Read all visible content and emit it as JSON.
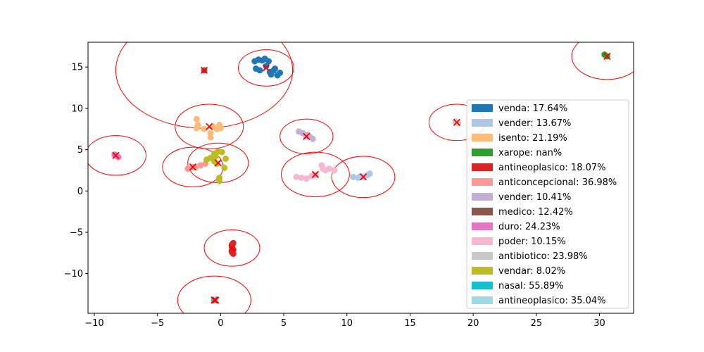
{
  "chart_data": {
    "type": "scatter",
    "title": "",
    "xlabel": "",
    "ylabel": "",
    "xlim": [
      -10.5,
      32.7
    ],
    "ylim": [
      -14.8,
      18.0
    ],
    "xticks": [
      -10,
      -5,
      0,
      5,
      10,
      15,
      20,
      25,
      30
    ],
    "yticks": [
      -10,
      -5,
      0,
      5,
      10,
      15
    ],
    "grid": false,
    "legend_position": "right",
    "center_marker_color": "#ff0000",
    "circle_color": "#ff0000",
    "series": [
      {
        "name": "venda: 17.64%",
        "color": "#1f77b4",
        "points": [
          [
            2.7,
            15.7
          ],
          [
            3.0,
            15.9
          ],
          [
            3.3,
            15.8
          ],
          [
            3.5,
            16.0
          ],
          [
            3.8,
            15.7
          ],
          [
            2.8,
            14.8
          ],
          [
            3.1,
            14.6
          ],
          [
            3.9,
            14.4
          ],
          [
            4.0,
            14.1
          ],
          [
            4.3,
            14.8
          ],
          [
            4.5,
            14.0
          ],
          [
            4.7,
            14.3
          ],
          [
            3.6,
            15.1
          ],
          [
            4.2,
            14.6
          ]
        ],
        "center": [
          3.6,
          14.9
        ],
        "radius": 2.2
      },
      {
        "name": "vender: 13.67%",
        "color": "#aec7e8",
        "points": [
          [
            10.5,
            1.7
          ],
          [
            10.9,
            1.6
          ],
          [
            11.1,
            1.8
          ],
          [
            11.6,
            1.9
          ],
          [
            11.8,
            2.1
          ],
          [
            11.3,
            1.7
          ]
        ],
        "center": [
          11.3,
          1.7
        ],
        "radius": 2.5
      },
      {
        "name": "isento: 21.19%",
        "color": "#ffbb78",
        "points": [
          [
            -1.9,
            8.7
          ],
          [
            -1.8,
            8.0
          ],
          [
            -1.9,
            7.6
          ],
          [
            -1.3,
            7.5
          ],
          [
            -0.8,
            7.0
          ],
          [
            -0.8,
            6.5
          ],
          [
            -0.1,
            8.0
          ],
          [
            0.0,
            7.6
          ],
          [
            -0.3,
            7.5
          ],
          [
            -0.6,
            7.8
          ]
        ],
        "center": [
          -0.9,
          7.8
        ],
        "radius": 2.7
      },
      {
        "name": "xarope: nan%",
        "color": "#2ca02c",
        "points": [
          [
            30.4,
            16.5
          ],
          [
            30.6,
            16.3
          ]
        ],
        "center": [
          30.6,
          16.3
        ],
        "radius": 2.8
      },
      {
        "name": "antineoplasico: 18.07%",
        "color": "#d62728",
        "points": [
          [
            0.9,
            -6.5
          ],
          [
            1.0,
            -6.3
          ],
          [
            0.9,
            -6.8
          ],
          [
            1.0,
            -7.1
          ],
          [
            0.9,
            -7.4
          ],
          [
            1.0,
            -7.6
          ],
          [
            0.9,
            -7.2
          ]
        ],
        "center": [
          0.9,
          -6.9
        ],
        "radius": 2.2
      },
      {
        "name": "anticoncepcional: 36.98%",
        "color": "#ff9896",
        "points": [
          [
            -2.6,
            2.7
          ],
          [
            -2.2,
            2.9
          ],
          [
            -1.6,
            3.1
          ],
          [
            -1.2,
            3.3
          ],
          [
            -2.0,
            2.9
          ]
        ],
        "center": [
          -2.2,
          2.9
        ],
        "radius": 2.4
      },
      {
        "name": "vender: 10.41%",
        "color": "#c5b0d5",
        "points": [
          [
            6.2,
            7.2
          ],
          [
            6.5,
            7.0
          ],
          [
            6.9,
            6.8
          ],
          [
            7.3,
            6.3
          ],
          [
            7.1,
            6.5
          ],
          [
            6.8,
            6.6
          ]
        ],
        "center": [
          6.8,
          6.6
        ],
        "radius": 2.1
      },
      {
        "name": "medico: 12.42%",
        "color": "#8c564b",
        "points": [
          [
            -1.3,
            14.6
          ]
        ],
        "center": [
          -1.3,
          14.6
        ],
        "radius": 7.0
      },
      {
        "name": "duro: 24.23%",
        "color": "#e377c2",
        "points": [
          [
            -8.4,
            4.4
          ],
          [
            -8.1,
            4.1
          ],
          [
            -8.3,
            4.3
          ]
        ],
        "center": [
          -8.3,
          4.3
        ],
        "radius": 2.4
      },
      {
        "name": "poder: 10.15%",
        "color": "#f7b6d2",
        "points": [
          [
            6.0,
            1.7
          ],
          [
            6.4,
            1.6
          ],
          [
            6.8,
            1.5
          ],
          [
            7.2,
            1.8
          ],
          [
            7.5,
            1.9
          ],
          [
            8.0,
            3.1
          ],
          [
            8.3,
            2.5
          ],
          [
            8.6,
            2.7
          ],
          [
            9.0,
            2.5
          ],
          [
            8.1,
            2.7
          ]
        ],
        "center": [
          7.5,
          2.0
        ],
        "radius": 2.7
      },
      {
        "name": "antibiotico: 23.98%",
        "color": "#c7c7c7",
        "points": [
          [
            18.6,
            8.4
          ],
          [
            18.8,
            8.2
          ]
        ],
        "center": [
          18.7,
          8.3
        ],
        "radius": 2.2
      },
      {
        "name": "vendar: 8.02%",
        "color": "#bcbd22",
        "points": [
          [
            -0.8,
            4.0
          ],
          [
            -0.5,
            4.5
          ],
          [
            -0.2,
            4.8
          ],
          [
            0.1,
            4.7
          ],
          [
            0.4,
            3.9
          ],
          [
            0.3,
            2.8
          ],
          [
            -0.3,
            3.3
          ],
          [
            -0.5,
            3.6
          ],
          [
            -0.1,
            1.6
          ],
          [
            -0.1,
            1.2
          ],
          [
            -1.1,
            3.8
          ],
          [
            -0.4,
            4.2
          ]
        ],
        "center": [
          -0.2,
          3.4
        ],
        "radius": 2.4
      },
      {
        "name": "nasal: 55.89%",
        "color": "#17becf",
        "points": [
          [
            -0.5,
            -13.2
          ]
        ],
        "center": [
          -0.5,
          -13.2
        ],
        "radius": 2.9
      },
      {
        "name": "antineoplasico: 35.04%",
        "color": "#9edae5",
        "points": [
          [
            -0.4,
            -13.1
          ]
        ],
        "center": [
          -0.4,
          -13.2
        ],
        "radius": 0.0
      }
    ]
  }
}
